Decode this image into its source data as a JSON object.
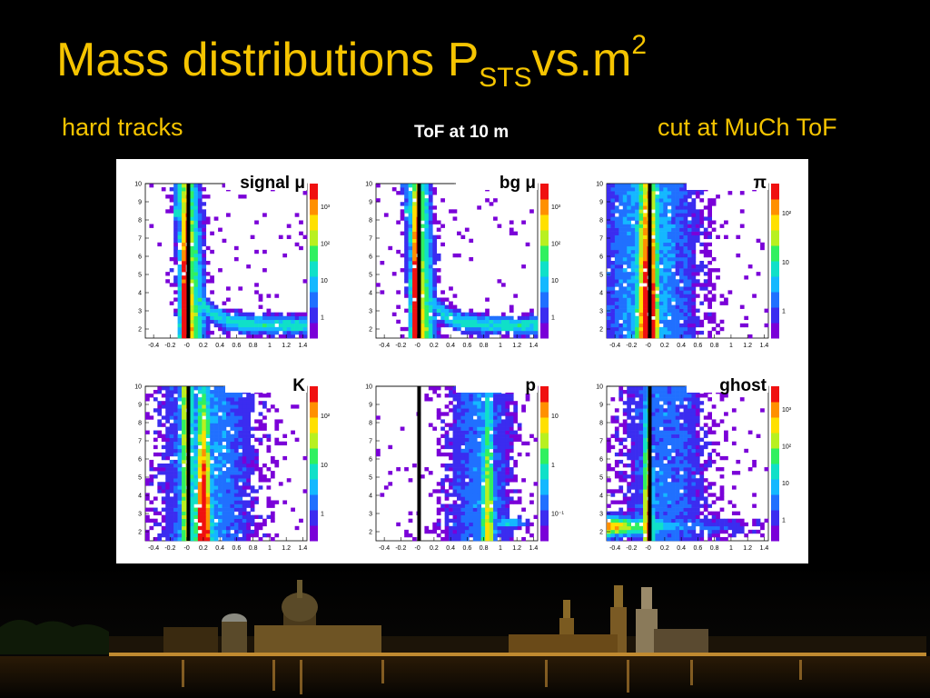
{
  "slide": {
    "title_main": "Mass distributions P",
    "title_sub": "STS",
    "title_vs": "vs.m",
    "title_sup": "2",
    "left_note": "hard tracks",
    "center_note": "ToF at 10 m",
    "right_note": "cut at MuCh ToF"
  },
  "colors": {
    "title": "#f5c400",
    "background": "#000000",
    "cut_line": "#000000"
  },
  "chart_data": [
    {
      "type": "heatmap",
      "label": "signal μ",
      "ylim": [
        1.5,
        10
      ],
      "xlim": [
        -0.5,
        1.45
      ],
      "cut_x": 0.02,
      "x_ticks": [
        "-0.4",
        "-0.2",
        "-0",
        "0.2",
        "0.4",
        "0.6",
        "0.8",
        "1",
        "1.2",
        "1.4"
      ],
      "y_ticks": [
        "2",
        "3",
        "4",
        "5",
        "6",
        "7",
        "8",
        "9",
        "10"
      ],
      "z_ticks": [
        "10³",
        "10²",
        "10",
        "1"
      ],
      "pattern": "muon"
    },
    {
      "type": "heatmap",
      "label": "bg μ",
      "ylim": [
        1.5,
        10
      ],
      "xlim": [
        -0.5,
        1.45
      ],
      "cut_x": 0.02,
      "x_ticks": [
        "-0.4",
        "-0.2",
        "-0",
        "0.2",
        "0.4",
        "0.6",
        "0.8",
        "1",
        "1.2",
        "1.4"
      ],
      "y_ticks": [
        "2",
        "3",
        "4",
        "5",
        "6",
        "7",
        "8",
        "9",
        "10"
      ],
      "z_ticks": [
        "10³",
        "10²",
        "10",
        "1"
      ],
      "pattern": "muon"
    },
    {
      "type": "heatmap",
      "label": "π",
      "ylim": [
        1.5,
        10
      ],
      "xlim": [
        -0.5,
        1.45
      ],
      "cut_x": 0.02,
      "x_ticks": [
        "-0.4",
        "-0.2",
        "-0",
        "0.2",
        "0.4",
        "0.6",
        "0.8",
        "1",
        "1.2",
        "1.4"
      ],
      "y_ticks": [
        "2",
        "3",
        "4",
        "5",
        "6",
        "7",
        "8",
        "9",
        "10"
      ],
      "z_ticks": [
        "10²",
        "10",
        "1"
      ],
      "pattern": "pion"
    },
    {
      "type": "heatmap",
      "label": "K",
      "ylim": [
        1.5,
        10
      ],
      "xlim": [
        -0.5,
        1.45
      ],
      "cut_x": 0.02,
      "x_ticks": [
        "-0.4",
        "-0.2",
        "-0",
        "0.2",
        "0.4",
        "0.6",
        "0.8",
        "1",
        "1.2",
        "1.4"
      ],
      "y_ticks": [
        "2",
        "3",
        "4",
        "5",
        "6",
        "7",
        "8",
        "9",
        "10"
      ],
      "z_ticks": [
        "10²",
        "10",
        "1"
      ],
      "pattern": "kaon"
    },
    {
      "type": "heatmap",
      "label": "p",
      "ylim": [
        1.5,
        10
      ],
      "xlim": [
        -0.5,
        1.45
      ],
      "cut_x": 0.02,
      "x_ticks": [
        "-0.4",
        "-0.2",
        "-0",
        "0.2",
        "0.4",
        "0.6",
        "0.8",
        "1",
        "1.2",
        "1.4"
      ],
      "y_ticks": [
        "2",
        "3",
        "4",
        "5",
        "6",
        "7",
        "8",
        "9",
        "10"
      ],
      "z_ticks": [
        "10",
        "1",
        "10⁻¹"
      ],
      "pattern": "proton"
    },
    {
      "type": "heatmap",
      "label": "ghost",
      "ylim": [
        1.5,
        10
      ],
      "xlim": [
        -0.5,
        1.45
      ],
      "cut_x": 0.02,
      "x_ticks": [
        "-0.4",
        "-0.2",
        "-0",
        "0.2",
        "0.4",
        "0.6",
        "0.8",
        "1",
        "1.2",
        "1.4"
      ],
      "y_ticks": [
        "2",
        "3",
        "4",
        "5",
        "6",
        "7",
        "8",
        "9",
        "10"
      ],
      "z_ticks": [
        "10³",
        "10²",
        "10",
        "1"
      ],
      "pattern": "ghost"
    }
  ]
}
